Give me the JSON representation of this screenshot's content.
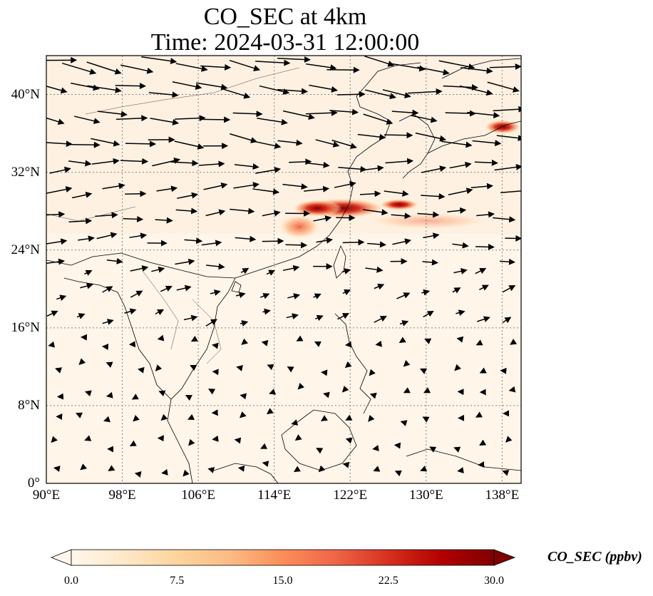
{
  "title": {
    "line1": "CO_SEC at 4km",
    "line2": "Time: 2024-03-31 12:00:00"
  },
  "map": {
    "lon_range": [
      90,
      140
    ],
    "lat_range": [
      0,
      44
    ],
    "lon_ticks": [
      "90°E",
      "98°E",
      "106°E",
      "114°E",
      "122°E",
      "130°E",
      "138°E"
    ],
    "lat_ticks": [
      "0°",
      "8°N",
      "16°N",
      "24°N",
      "32°N",
      "40°N"
    ],
    "gridlines": true,
    "field_name": "CO_SEC",
    "wind_vectors": true
  },
  "colorbar": {
    "label": "CO_SEC (ppbv)",
    "ticks": [
      "0.0",
      "7.5",
      "15.0",
      "22.5",
      "30.0"
    ],
    "min": 0,
    "max": 30,
    "colormap": [
      "#fff7ec",
      "#fee8c8",
      "#fdd49e",
      "#fdbb84",
      "#fc8d59",
      "#ef6548",
      "#d7301f",
      "#b30000",
      "#7f0000"
    ]
  }
}
